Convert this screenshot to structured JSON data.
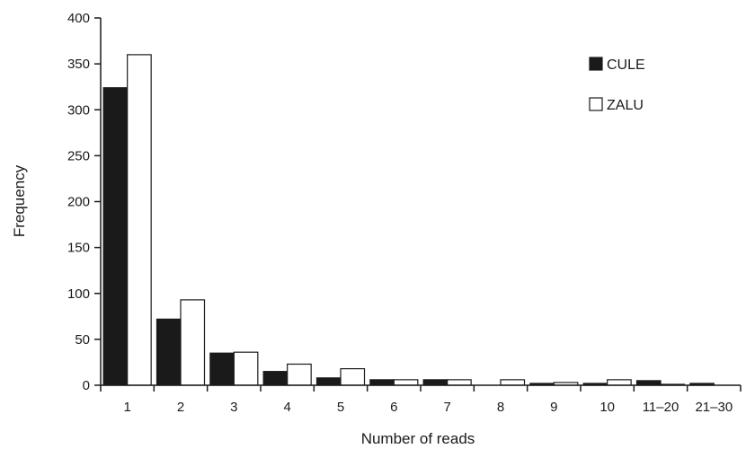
{
  "chart_data": {
    "type": "bar",
    "title": "",
    "xlabel": "Number of reads",
    "ylabel": "Frequency",
    "categories": [
      "1",
      "2",
      "3",
      "4",
      "5",
      "6",
      "7",
      "8",
      "9",
      "10",
      "11–20",
      "21–30"
    ],
    "series": [
      {
        "name": "CULE",
        "color": "#1a1a1a",
        "values": [
          324,
          72,
          35,
          15,
          8,
          6,
          6,
          0,
          2,
          2,
          5,
          2
        ]
      },
      {
        "name": "ZALU",
        "color": "#ffffff",
        "values": [
          360,
          93,
          36,
          23,
          18,
          6,
          6,
          6,
          3,
          6,
          1,
          0
        ]
      }
    ],
    "ylim": [
      0,
      400
    ],
    "yticks": [
      0,
      50,
      100,
      150,
      200,
      250,
      300,
      350,
      400
    ],
    "grid": false,
    "legend_position": "top-right"
  }
}
